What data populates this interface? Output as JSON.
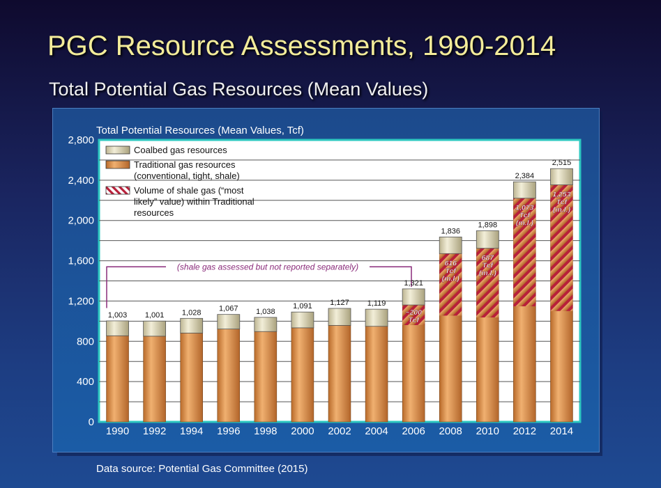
{
  "title": "PGC Resource Assessments, 1990-2014",
  "subtitle": "Total Potential Gas Resources (Mean Values)",
  "source": "Data source: Potential Gas Committee (2015)",
  "colors": {
    "traditional": "#d2893e",
    "coalbed": "#d8d3b4",
    "shale_stripe": "#b8203a",
    "frame": "#2ec8c0"
  },
  "chart_data": {
    "type": "bar",
    "title": "Total Potential Resources (Mean Values, Tcf)",
    "categories": [
      "1990",
      "1992",
      "1994",
      "1996",
      "1998",
      "2000",
      "2002",
      "2004",
      "2006",
      "2008",
      "2010",
      "2012",
      "2014"
    ],
    "series": [
      {
        "name": "Coalbed gas resources",
        "values": [
          148,
          150,
          146,
          145,
          141,
          157,
          169,
          170,
          160,
          165,
          174,
          163,
          161
        ]
      },
      {
        "name": "Traditional gas resources (conventional, tight, shale)",
        "values": [
          855,
          851,
          882,
          922,
          897,
          934,
          958,
          949,
          1161,
          1671,
          1724,
          2221,
          2354
        ]
      },
      {
        "name": "Volume of shale gas (“most likely” value) within Traditional resources",
        "values": [
          0,
          0,
          0,
          0,
          0,
          0,
          0,
          0,
          200,
          616,
          687,
          1073,
          1253
        ]
      }
    ],
    "totals": [
      1003,
      1001,
      1028,
      1067,
      1038,
      1091,
      1127,
      1119,
      1321,
      1836,
      1898,
      2384,
      2515
    ],
    "total_labels": [
      "1,003",
      "1,001",
      "1,028",
      "1,067",
      "1,038",
      "1,091",
      "1,127",
      "1,119",
      "1,321",
      "1,836",
      "1,898",
      "2,384",
      "2,515"
    ],
    "shale_labels": [
      {
        "index": 8,
        "lines": [
          "~200",
          "Tcf"
        ]
      },
      {
        "index": 9,
        "lines": [
          "616",
          "Tcf",
          "(m.l.)"
        ]
      },
      {
        "index": 10,
        "lines": [
          "687",
          "Tcf",
          "(m.l.)"
        ]
      },
      {
        "index": 11,
        "lines": [
          "1,073",
          "Tcf",
          "(m.l.)"
        ]
      },
      {
        "index": 12,
        "lines": [
          "1,253",
          "Tcf",
          "(m.l.)"
        ]
      }
    ],
    "ylim": [
      0,
      2800
    ],
    "yticks": [
      0,
      400,
      800,
      1200,
      1600,
      2000,
      2400,
      2800
    ],
    "ytick_labels": [
      "0",
      "400",
      "800",
      "1,200",
      "1,600",
      "2,000",
      "2,400",
      "2,800"
    ],
    "legend": [
      {
        "key": "coalbed",
        "lines": [
          "Coalbed gas resources"
        ]
      },
      {
        "key": "traditional",
        "lines": [
          "Traditional gas resources",
          "(conventional, tight, shale)"
        ]
      },
      {
        "key": "shale",
        "lines": [
          "Volume of shale gas (“most",
          "likely” value) within Traditional",
          "resources"
        ]
      }
    ],
    "annotation": "(shale gas assessed but not reported separately)",
    "grid": true,
    "legend_position": "top-left"
  }
}
